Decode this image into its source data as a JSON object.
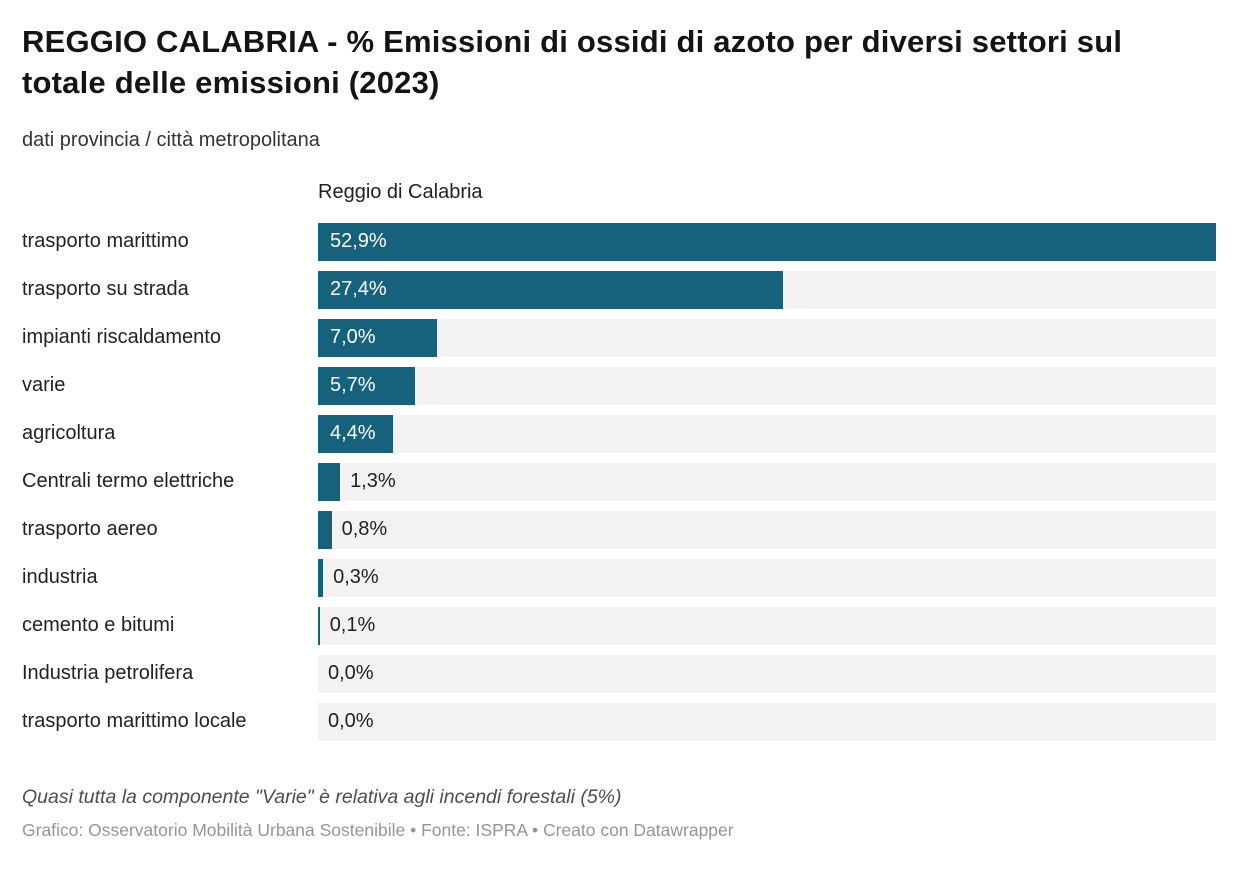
{
  "header": {
    "title": "REGGIO CALABRIA - % Emissioni di ossidi di azoto per diversi settori sul totale delle emissioni (2023)",
    "subtitle": "dati provincia / città metropolitana"
  },
  "chart_data": {
    "type": "bar",
    "orientation": "horizontal",
    "column_header": "Reggio di Calabria",
    "categories": [
      "trasporto marittimo",
      "trasporto su strada",
      "impianti riscaldamento",
      "varie",
      "agricoltura",
      "Centrali termo elettriche",
      "trasporto aereo",
      "industria",
      "cemento e bitumi",
      "Industria petrolifera",
      "trasporto marittimo locale"
    ],
    "values": [
      52.9,
      27.4,
      7.0,
      5.7,
      4.4,
      1.3,
      0.8,
      0.3,
      0.1,
      0.0,
      0.0
    ],
    "value_labels": [
      "52,9%",
      "27,4%",
      "7,0%",
      "5,7%",
      "4,4%",
      "1,3%",
      "0,8%",
      "0,3%",
      "0,1%",
      "0,0%",
      "0,0%"
    ],
    "unit": "%",
    "axis_max": 52.9,
    "inside_label_threshold": 4.0,
    "bar_color": "#16617c",
    "track_color": "#f2f2f2",
    "grid": false,
    "legend": false
  },
  "footer": {
    "note": "Quasi tutta la componente \"Varie\" è relativa agli incendi forestali (5%)",
    "credits": "Grafico: Osservatorio Mobilità Urbana Sostenibile • Fonte: ISPRA • Creato con Datawrapper"
  }
}
